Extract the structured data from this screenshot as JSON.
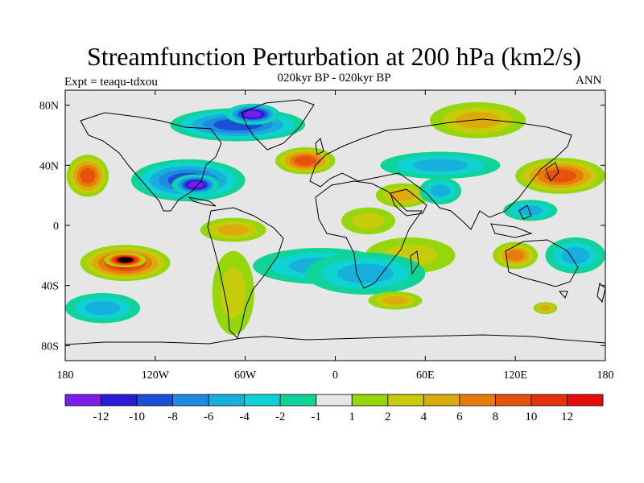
{
  "title": "Streamfunction Perturbation at 200 hPa (km2/s)",
  "subtitle": "020kyr BP - 020kyr BP",
  "left_label": "Expt = teaqu-tdxou",
  "right_label": "ANN",
  "colors": {
    "land_lines": "#000000",
    "background": "#e6e6e6"
  },
  "chart_data": {
    "type": "heatmap",
    "title": "Streamfunction Perturbation at 200 hPa (km2/s)",
    "subtitle": "020kyr BP - 020kyr BP",
    "x_ticks": [
      "180",
      "120W",
      "60W",
      "0",
      "60E",
      "120E",
      "180"
    ],
    "x_values": [
      -180,
      -120,
      -60,
      0,
      60,
      120,
      180
    ],
    "y_ticks": [
      "80N",
      "40N",
      "0",
      "40S",
      "80S"
    ],
    "y_values": [
      80,
      40,
      0,
      -40,
      -80
    ],
    "xlim": [
      -180,
      180
    ],
    "ylim": [
      -90,
      90
    ],
    "colorbar": {
      "labels": [
        "-12",
        "-10",
        "-8",
        "-6",
        "-4",
        "-2",
        "-1",
        "1",
        "2",
        "4",
        "6",
        "8",
        "10",
        "12"
      ],
      "colors": [
        "#7a1de8",
        "#2a1cd6",
        "#1a4fd6",
        "#1f8be0",
        "#17b0dc",
        "#0fd2d2",
        "#10d39a",
        "#e6e6e6",
        "#96d60c",
        "#c6cc0a",
        "#dcaa0a",
        "#e67c0c",
        "#e6520c",
        "#e6300c",
        "#e60c0c"
      ]
    },
    "anomalies": [
      {
        "lon": -65,
        "lat": 67,
        "rx": 45,
        "ry": 11,
        "level": -5
      },
      {
        "lon": -55,
        "lat": 74,
        "rx": 18,
        "ry": 7,
        "level": -7
      },
      {
        "lon": -98,
        "lat": 30,
        "rx": 38,
        "ry": 14,
        "level": -5
      },
      {
        "lon": -93,
        "lat": 27,
        "rx": 16,
        "ry": 7,
        "level": -7
      },
      {
        "lon": -20,
        "lat": 43,
        "rx": 20,
        "ry": 9,
        "level": 5
      },
      {
        "lon": 70,
        "lat": 40,
        "rx": 40,
        "ry": 9,
        "level": -3
      },
      {
        "lon": 45,
        "lat": 20,
        "rx": 18,
        "ry": 8,
        "level": 3
      },
      {
        "lon": 70,
        "lat": 23,
        "rx": 14,
        "ry": 9,
        "level": -3
      },
      {
        "lon": 22,
        "lat": 3,
        "rx": 18,
        "ry": 9,
        "level": 2
      },
      {
        "lon": 50,
        "lat": -20,
        "rx": 30,
        "ry": 12,
        "level": 2
      },
      {
        "lon": -10,
        "lat": -27,
        "rx": 45,
        "ry": 12,
        "level": -3
      },
      {
        "lon": 20,
        "lat": -32,
        "rx": 40,
        "ry": 14,
        "level": -3
      },
      {
        "lon": -68,
        "lat": -3,
        "rx": 22,
        "ry": 8,
        "level": 3
      },
      {
        "lon": -68,
        "lat": -45,
        "rx": 14,
        "ry": 28,
        "level": 2
      },
      {
        "lon": -140,
        "lat": -25,
        "rx": 30,
        "ry": 12,
        "level": 6
      },
      {
        "lon": -140,
        "lat": -23,
        "rx": 14,
        "ry": 5,
        "level": 9
      },
      {
        "lon": -155,
        "lat": -55,
        "rx": 25,
        "ry": 10,
        "level": -3
      },
      {
        "lon": -165,
        "lat": 33,
        "rx": 14,
        "ry": 14,
        "level": 5
      },
      {
        "lon": 150,
        "lat": 33,
        "rx": 30,
        "ry": 12,
        "level": 5
      },
      {
        "lon": 130,
        "lat": 10,
        "rx": 18,
        "ry": 7,
        "level": -3
      },
      {
        "lon": 120,
        "lat": -20,
        "rx": 15,
        "ry": 9,
        "level": 4
      },
      {
        "lon": 160,
        "lat": -20,
        "rx": 20,
        "ry": 12,
        "level": -3
      },
      {
        "lon": 140,
        "lat": -55,
        "rx": 8,
        "ry": 4,
        "level": 3
      },
      {
        "lon": 95,
        "lat": 70,
        "rx": 32,
        "ry": 12,
        "level": 3
      },
      {
        "lon": 40,
        "lat": -50,
        "rx": 18,
        "ry": 6,
        "level": 3
      }
    ]
  }
}
